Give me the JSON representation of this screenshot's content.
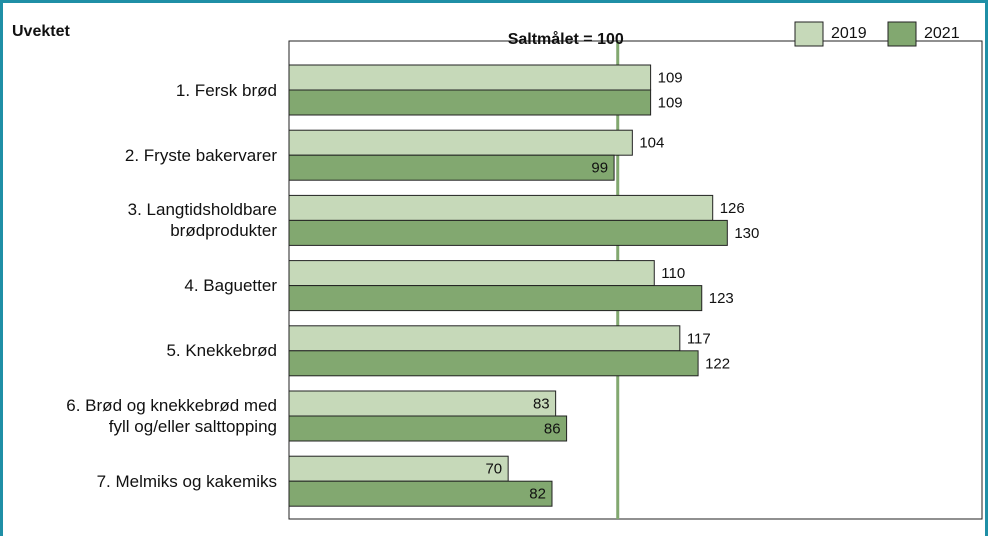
{
  "chart_data": {
    "type": "barh",
    "title": "Uvektet",
    "target": 100,
    "target_label": "Saltmålet = 100",
    "target_color": "#82a870",
    "categories": [
      [
        "1. Fersk brød"
      ],
      [
        "2. Fryste bakervarer"
      ],
      [
        "3. Langtidsholdbare",
        "brødprodukter"
      ],
      [
        "4. Baguetter"
      ],
      [
        "5. Knekkebrød"
      ],
      [
        "6. Brød og knekkebrød med",
        "fyll og/eller salttopping"
      ],
      [
        "7. Melmiks og kakemiks"
      ]
    ],
    "series": [
      {
        "name": "2019",
        "color": "#c6d9b9",
        "values": [
          109,
          104,
          126,
          110,
          117,
          83,
          70
        ]
      },
      {
        "name": "2021",
        "color": "#82a870",
        "values": [
          109,
          99,
          130,
          123,
          122,
          86,
          82
        ]
      }
    ],
    "xlim": [
      10,
      200
    ],
    "legend": "top-right"
  }
}
